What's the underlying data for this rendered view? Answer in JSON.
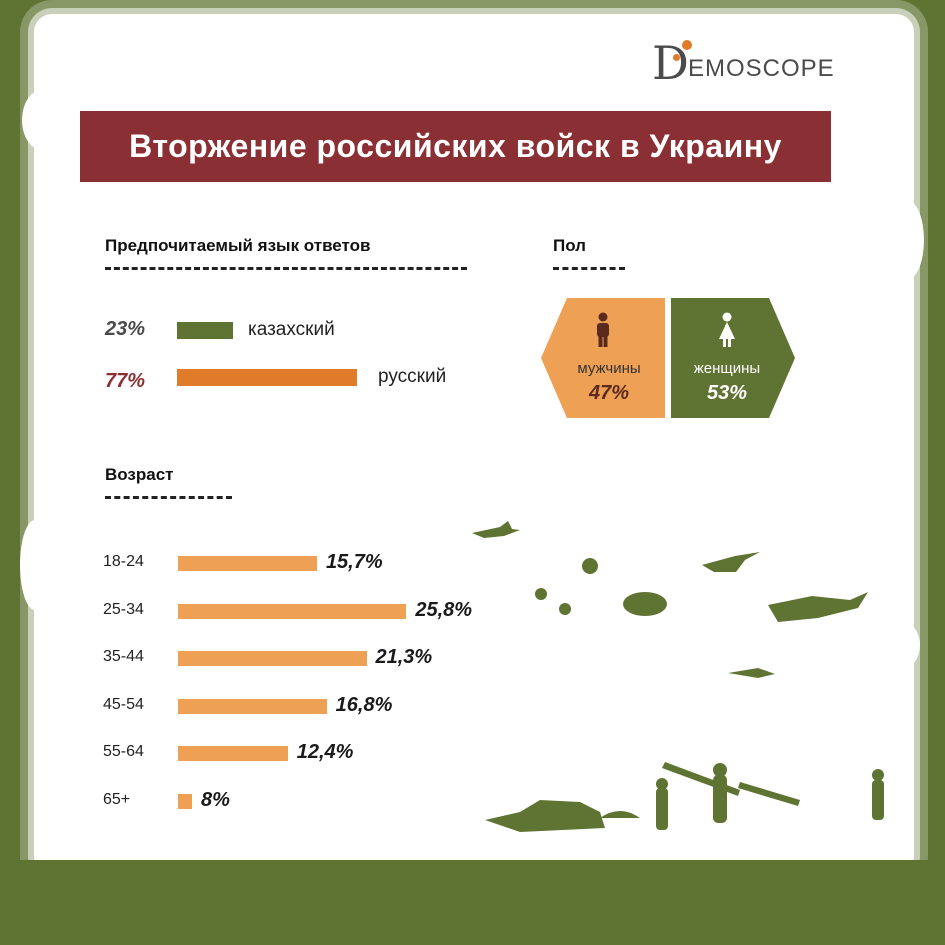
{
  "brand": {
    "logo_text": "EMOSCOPE"
  },
  "title": "Вторжение российских войск в Украину",
  "language": {
    "heading": "Предпочитаемый язык ответов",
    "items": [
      {
        "pct_label": "23%",
        "label": "казахский",
        "value": 23,
        "color": "#5f7433",
        "pct_color": "#4a4a4a"
      },
      {
        "pct_label": "77%",
        "label": "русский",
        "value": 77,
        "color": "#e07b2a",
        "pct_color": "#8a3034"
      }
    ]
  },
  "gender": {
    "heading": "Пол",
    "items": [
      {
        "label": "мужчины",
        "pct_label": "47%",
        "value": 47,
        "color": "#eea155",
        "icon": "male-person-icon"
      },
      {
        "label": "женщины",
        "pct_label": "53%",
        "value": 53,
        "color": "#5f7433",
        "icon": "female-person-icon"
      }
    ]
  },
  "age": {
    "heading": "Возраст"
  },
  "chart_data": {
    "type": "bar",
    "orientation": "horizontal",
    "categories": [
      "18-24",
      "25-34",
      "35-44",
      "45-54",
      "55-64",
      "65+"
    ],
    "values": [
      15.7,
      25.8,
      21.3,
      16.8,
      12.4,
      8
    ],
    "value_labels": [
      "15,7%",
      "25,8%",
      "21,3%",
      "16,8%",
      "12,4%",
      "8%"
    ],
    "bar_color": "#eea155",
    "title": "Возраст"
  },
  "colors": {
    "background": "#5f7433",
    "title_bar": "#8a3034",
    "accent_orange": "#e07b2a"
  }
}
